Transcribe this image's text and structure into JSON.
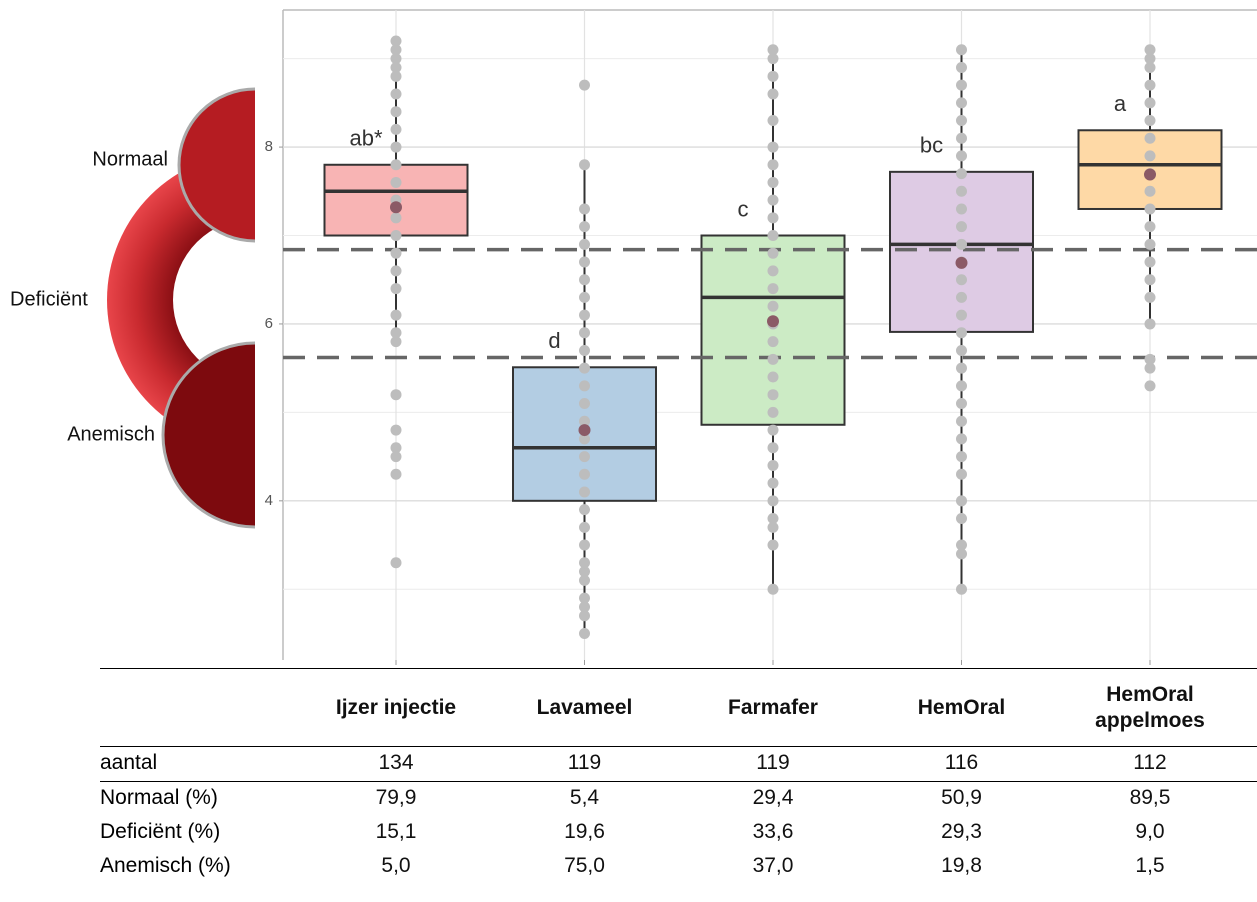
{
  "chart_data": {
    "type": "box",
    "categories": [
      "Ijzer injectie",
      "Lavameel",
      "Farmafer",
      "HemOral",
      "HemOral appelmoes"
    ],
    "side_labels": [
      "Normaal",
      "Deficiënt",
      "Anemisch"
    ],
    "ylim": [
      2.2,
      9.55
    ],
    "yticks": [
      4,
      6,
      8
    ],
    "minor_gridlines": [
      3,
      5,
      7,
      9
    ],
    "grid": true,
    "reference_lines": [
      6.84,
      5.62
    ],
    "mean_color": "#8b5a66",
    "point_color": "#bdbdbd",
    "boxes": [
      {
        "letter": "ab*",
        "color": "#f8b4b4",
        "whisker_low": 5.8,
        "q1": 7.0,
        "median": 7.5,
        "q3": 7.8,
        "whisker_high": 9.2,
        "mean": 7.32,
        "points": [
          3.3,
          4.3,
          4.5,
          4.6,
          4.8,
          5.2,
          5.8,
          5.9,
          6.1,
          6.4,
          6.6,
          6.8,
          7.0,
          7.2,
          7.4,
          7.6,
          7.8,
          8.0,
          8.2,
          8.4,
          8.6,
          8.8,
          8.9,
          9.0,
          9.1,
          9.2
        ]
      },
      {
        "letter": "d",
        "color": "#b3cde3",
        "whisker_low": 2.53,
        "q1": 4.0,
        "median": 4.6,
        "q3": 5.51,
        "whisker_high": 7.8,
        "mean": 4.8,
        "points": [
          2.5,
          2.7,
          2.8,
          2.9,
          3.1,
          3.2,
          3.3,
          3.5,
          3.7,
          3.9,
          4.1,
          4.3,
          4.5,
          4.7,
          4.9,
          5.1,
          5.3,
          5.5,
          5.7,
          5.9,
          6.1,
          6.3,
          6.5,
          6.7,
          6.9,
          7.1,
          7.3,
          7.8,
          8.7
        ]
      },
      {
        "letter": "c",
        "color": "#ccebc5",
        "whisker_low": 3.0,
        "q1": 4.86,
        "median": 6.3,
        "q3": 7.0,
        "whisker_high": 9.1,
        "mean": 6.03,
        "points": [
          3.0,
          3.5,
          3.7,
          3.8,
          4.0,
          4.2,
          4.4,
          4.6,
          4.8,
          5.0,
          5.2,
          5.4,
          5.6,
          5.8,
          6.0,
          6.2,
          6.4,
          6.6,
          6.8,
          7.0,
          7.2,
          7.4,
          7.6,
          7.8,
          8.0,
          8.3,
          8.6,
          8.8,
          9.0,
          9.1
        ]
      },
      {
        "letter": "bc",
        "color": "#decbe4",
        "whisker_low": 3.0,
        "q1": 5.91,
        "median": 6.9,
        "q3": 7.72,
        "whisker_high": 9.1,
        "mean": 6.69,
        "points": [
          3.0,
          3.4,
          3.5,
          3.8,
          4.0,
          4.3,
          4.5,
          4.7,
          4.9,
          5.1,
          5.3,
          5.5,
          5.7,
          5.9,
          6.1,
          6.3,
          6.5,
          6.7,
          6.9,
          7.1,
          7.3,
          7.5,
          7.7,
          7.9,
          8.1,
          8.3,
          8.5,
          8.7,
          8.9,
          9.1
        ]
      },
      {
        "letter": "a",
        "color": "#fed9a6",
        "whisker_low": 6.0,
        "q1": 7.3,
        "median": 7.8,
        "q3": 8.19,
        "whisker_high": 9.1,
        "mean": 7.69,
        "points": [
          5.3,
          5.5,
          5.6,
          6.0,
          6.3,
          6.5,
          6.7,
          6.9,
          7.1,
          7.3,
          7.5,
          7.7,
          7.9,
          8.1,
          8.3,
          8.5,
          8.7,
          8.9,
          9.0,
          9.1
        ]
      }
    ]
  },
  "table": {
    "rows": [
      {
        "label": "aantal",
        "cells": [
          "134",
          "119",
          "119",
          "116",
          "112"
        ]
      },
      {
        "label": "Normaal (%)",
        "cells": [
          "79,9",
          "5,4",
          "29,4",
          "50,9",
          "89,5"
        ]
      },
      {
        "label": "Deficiënt (%)",
        "cells": [
          "15,1",
          "19,6",
          "33,6",
          "29,3",
          "9,0"
        ]
      },
      {
        "label": "Anemisch (%)",
        "cells": [
          "5,0",
          "75,0",
          "37,0",
          "19,8",
          "1,5"
        ]
      }
    ]
  }
}
